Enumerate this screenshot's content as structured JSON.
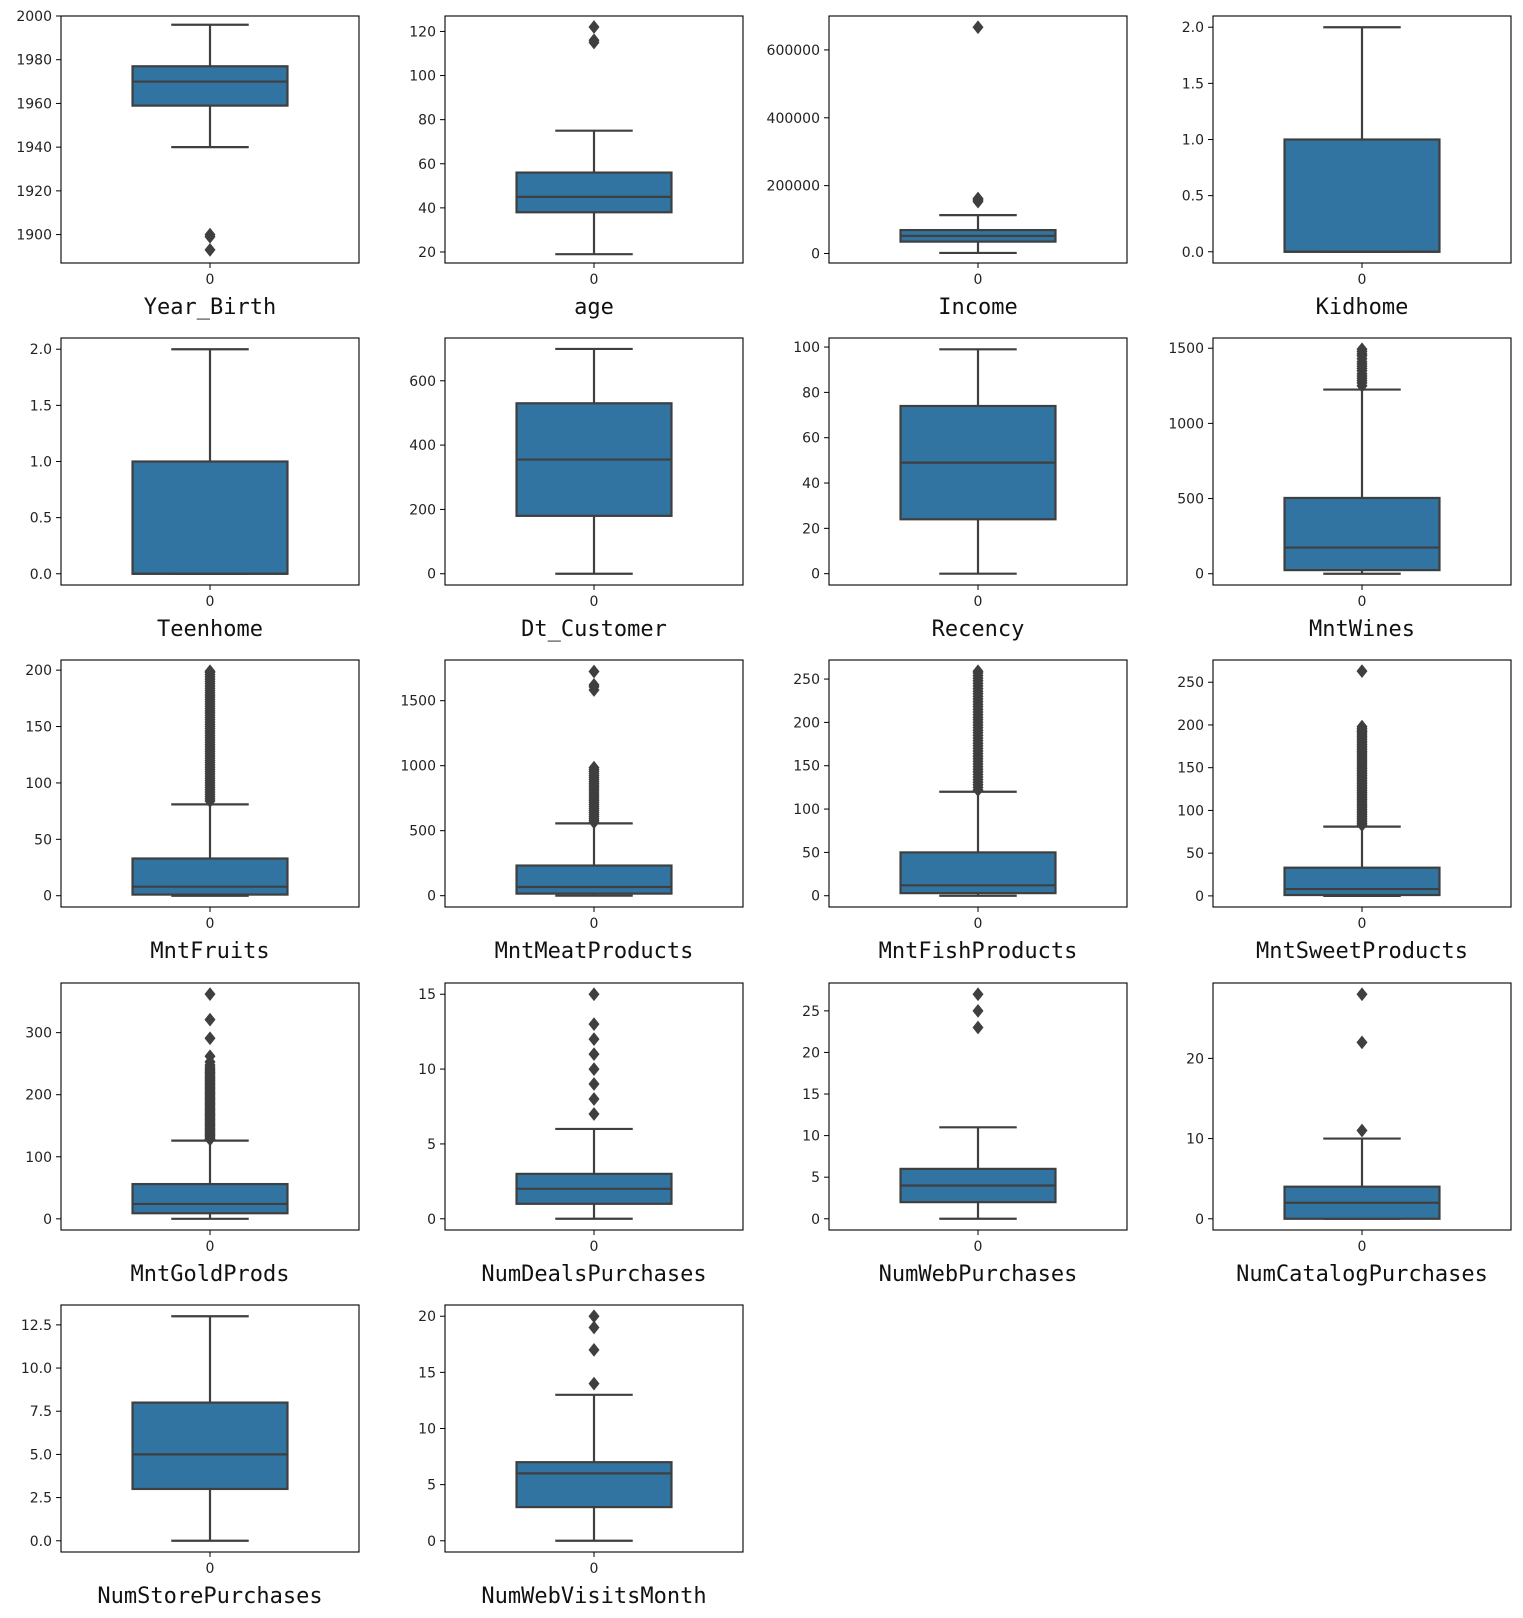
{
  "style": {
    "box_color": "#3274a1",
    "line_color": "#3f3f3f"
  },
  "chart_data": [
    {
      "type": "box",
      "xlabel": "Year_Birth",
      "category": "0",
      "yticks": [
        1900,
        1920,
        1940,
        1960,
        1980,
        2000
      ],
      "ylim": [
        1887,
        2000
      ],
      "stats": {
        "q1": 1959,
        "median": 1970,
        "q3": 1977,
        "whisker_low": 1940,
        "whisker_high": 1996
      },
      "outliers": [
        1893,
        1899,
        1900
      ]
    },
    {
      "type": "box",
      "xlabel": "age",
      "category": "0",
      "yticks": [
        20,
        40,
        60,
        80,
        100,
        120
      ],
      "ylim": [
        15,
        127
      ],
      "stats": {
        "q1": 38,
        "median": 45,
        "q3": 56,
        "whisker_low": 19,
        "whisker_high": 75
      },
      "outliers": [
        115,
        116,
        122
      ]
    },
    {
      "type": "box",
      "xlabel": "Income",
      "category": "0",
      "yticks": [
        0,
        200000,
        400000,
        600000
      ],
      "ylim": [
        -28000,
        700000
      ],
      "stats": {
        "q1": 35000,
        "median": 52000,
        "q3": 69000,
        "whisker_low": 1730,
        "whisker_high": 113000
      },
      "outliers": [
        153000,
        157000,
        160000,
        162000,
        666666
      ]
    },
    {
      "type": "box",
      "xlabel": "Kidhome",
      "category": "0",
      "yticks": [
        "0.0",
        "0.5",
        "1.0",
        "1.5",
        "2.0"
      ],
      "ylim": [
        -0.1,
        2.1
      ],
      "stats": {
        "q1": 0,
        "median": 0,
        "q3": 1,
        "whisker_low": 0,
        "whisker_high": 2
      },
      "outliers": []
    },
    {
      "type": "box",
      "xlabel": "Teenhome",
      "category": "0",
      "yticks": [
        "0.0",
        "0.5",
        "1.0",
        "1.5",
        "2.0"
      ],
      "ylim": [
        -0.1,
        2.1
      ],
      "stats": {
        "q1": 0,
        "median": 0,
        "q3": 1,
        "whisker_low": 0,
        "whisker_high": 2
      },
      "outliers": []
    },
    {
      "type": "box",
      "xlabel": "Dt_Customer",
      "category": "0",
      "yticks": [
        0,
        200,
        400,
        600
      ],
      "ylim": [
        -35,
        733
      ],
      "stats": {
        "q1": 180,
        "median": 355,
        "q3": 530,
        "whisker_low": 0,
        "whisker_high": 699
      },
      "outliers": []
    },
    {
      "type": "box",
      "xlabel": "Recency",
      "category": "0",
      "yticks": [
        0,
        20,
        40,
        60,
        80,
        100
      ],
      "ylim": [
        -5,
        104
      ],
      "stats": {
        "q1": 24,
        "median": 49,
        "q3": 74,
        "whisker_low": 0,
        "whisker_high": 99
      },
      "outliers": []
    },
    {
      "type": "box",
      "xlabel": "MntWines",
      "category": "0",
      "yticks": [
        0,
        500,
        1000,
        1500
      ],
      "ylim": [
        -75,
        1568
      ],
      "stats": {
        "q1": 24,
        "median": 174,
        "q3": 504,
        "whisker_low": 0,
        "whisker_high": 1225
      },
      "outliers": [
        1250,
        1270,
        1285,
        1300,
        1315,
        1330,
        1350,
        1365,
        1380,
        1395,
        1410,
        1430,
        1450,
        1462,
        1478,
        1493
      ]
    },
    {
      "type": "box",
      "xlabel": "MntFruits",
      "category": "0",
      "yticks": [
        0,
        50,
        100,
        150,
        200
      ],
      "ylim": [
        -10,
        209
      ],
      "stats": {
        "q1": 1,
        "median": 8,
        "q3": 33,
        "whisker_low": 0,
        "whisker_high": 81
      },
      "outliers": [
        84,
        86,
        88,
        90,
        92,
        94,
        96,
        98,
        100,
        102,
        104,
        106,
        108,
        110,
        112,
        114,
        116,
        118,
        120,
        122,
        124,
        126,
        128,
        130,
        132,
        134,
        136,
        138,
        140,
        142,
        144,
        146,
        148,
        150,
        152,
        154,
        156,
        158,
        160,
        162,
        164,
        166,
        168,
        170,
        172,
        174,
        176,
        178,
        180,
        182,
        184,
        186,
        188,
        190,
        192,
        194,
        196,
        198,
        199
      ]
    },
    {
      "type": "box",
      "xlabel": "MntMeatProducts",
      "category": "0",
      "yticks": [
        0,
        500,
        1000,
        1500
      ],
      "ylim": [
        -87,
        1813
      ],
      "stats": {
        "q1": 16,
        "median": 67,
        "q3": 232,
        "whisker_low": 0,
        "whisker_high": 556
      },
      "outliers": [
        565,
        580,
        595,
        610,
        625,
        640,
        655,
        670,
        685,
        700,
        715,
        730,
        745,
        760,
        775,
        790,
        805,
        820,
        835,
        850,
        865,
        880,
        895,
        910,
        925,
        940,
        955,
        970,
        985,
        1582,
        1607,
        1622,
        1725
      ]
    },
    {
      "type": "box",
      "xlabel": "MntFishProducts",
      "category": "0",
      "yticks": [
        0,
        50,
        100,
        150,
        200,
        250
      ],
      "ylim": [
        -13,
        272
      ],
      "stats": {
        "q1": 3,
        "median": 12,
        "q3": 50,
        "whisker_low": 0,
        "whisker_high": 120
      },
      "outliers": [
        122,
        125,
        128,
        131,
        134,
        137,
        140,
        143,
        146,
        149,
        152,
        155,
        158,
        161,
        164,
        167,
        170,
        173,
        176,
        179,
        182,
        185,
        188,
        191,
        194,
        197,
        200,
        203,
        206,
        209,
        212,
        215,
        218,
        221,
        224,
        227,
        230,
        233,
        236,
        239,
        242,
        245,
        248,
        251,
        254,
        257,
        259
      ]
    },
    {
      "type": "box",
      "xlabel": "MntSweetProducts",
      "category": "0",
      "yticks": [
        0,
        50,
        100,
        150,
        200,
        250
      ],
      "ylim": [
        -13,
        276
      ],
      "stats": {
        "q1": 1,
        "median": 8,
        "q3": 33,
        "whisker_low": 0,
        "whisker_high": 81
      },
      "outliers": [
        83,
        85,
        87,
        89,
        91,
        93,
        95,
        97,
        99,
        101,
        103,
        105,
        107,
        109,
        111,
        113,
        115,
        117,
        119,
        121,
        123,
        125,
        127,
        129,
        131,
        133,
        135,
        137,
        139,
        141,
        143,
        145,
        147,
        149,
        151,
        153,
        155,
        157,
        159,
        161,
        163,
        165,
        167,
        169,
        171,
        173,
        175,
        177,
        179,
        181,
        183,
        185,
        187,
        189,
        191,
        192,
        194,
        196,
        198,
        263
      ]
    },
    {
      "type": "box",
      "xlabel": "MntGoldProds",
      "category": "0",
      "yticks": [
        0,
        100,
        200,
        300
      ],
      "ylim": [
        -18,
        380
      ],
      "stats": {
        "q1": 9,
        "median": 24,
        "q3": 56,
        "whisker_low": 0,
        "whisker_high": 126
      },
      "outliers": [
        128,
        130,
        132,
        134,
        136,
        138,
        140,
        142,
        144,
        146,
        148,
        150,
        152,
        154,
        156,
        158,
        160,
        162,
        164,
        166,
        168,
        170,
        172,
        174,
        176,
        178,
        180,
        182,
        184,
        186,
        188,
        190,
        192,
        194,
        196,
        198,
        200,
        202,
        204,
        206,
        208,
        210,
        212,
        214,
        216,
        218,
        220,
        222,
        224,
        226,
        228,
        230,
        232,
        234,
        236,
        238,
        240,
        242,
        245,
        248,
        253,
        262,
        291,
        321,
        362
      ]
    },
    {
      "type": "box",
      "xlabel": "NumDealsPurchases",
      "category": "0",
      "yticks": [
        0,
        5,
        10,
        15
      ],
      "ylim": [
        -0.75,
        15.75
      ],
      "stats": {
        "q1": 1,
        "median": 2,
        "q3": 3,
        "whisker_low": 0,
        "whisker_high": 6
      },
      "outliers": [
        7,
        8,
        9,
        10,
        11,
        12,
        13,
        15
      ]
    },
    {
      "type": "box",
      "xlabel": "NumWebPurchases",
      "category": "0",
      "yticks": [
        0,
        5,
        10,
        15,
        20,
        25
      ],
      "ylim": [
        -1.35,
        28.35
      ],
      "stats": {
        "q1": 2,
        "median": 4,
        "q3": 6,
        "whisker_low": 0,
        "whisker_high": 11
      },
      "outliers": [
        23,
        25,
        27
      ]
    },
    {
      "type": "box",
      "xlabel": "NumCatalogPurchases",
      "category": "0",
      "yticks": [
        0,
        10,
        20
      ],
      "ylim": [
        -1.4,
        29.4
      ],
      "stats": {
        "q1": 0,
        "median": 2,
        "q3": 4,
        "whisker_low": 0,
        "whisker_high": 10
      },
      "outliers": [
        11,
        22,
        28
      ]
    },
    {
      "type": "box",
      "xlabel": "NumStorePurchases",
      "category": "0",
      "yticks": [
        "0.0",
        "2.5",
        "5.0",
        "7.5",
        "10.0",
        "12.5"
      ],
      "ylim": [
        -0.65,
        13.65
      ],
      "stats": {
        "q1": 3,
        "median": 5,
        "q3": 8,
        "whisker_low": 0,
        "whisker_high": 13
      },
      "outliers": []
    },
    {
      "type": "box",
      "xlabel": "NumWebVisitsMonth",
      "category": "0",
      "yticks": [
        0,
        5,
        10,
        15,
        20
      ],
      "ylim": [
        -1,
        21
      ],
      "stats": {
        "q1": 3,
        "median": 6,
        "q3": 7,
        "whisker_low": 0,
        "whisker_high": 13
      },
      "outliers": [
        14,
        17,
        19,
        20
      ]
    }
  ]
}
